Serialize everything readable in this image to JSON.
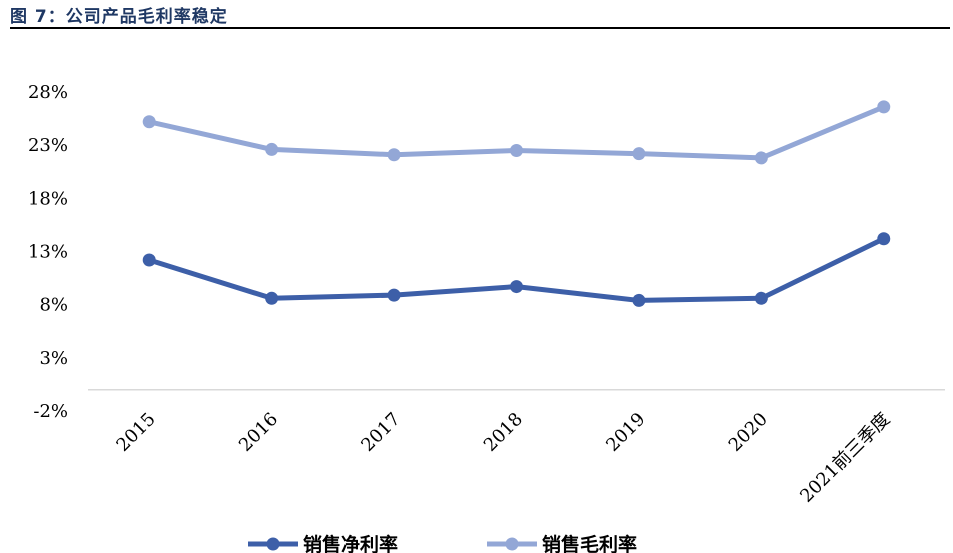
{
  "figure": {
    "title": "图 7：公司产品毛利率稳定"
  },
  "chart_data": {
    "type": "line",
    "title": "图 7：公司产品毛利率稳定",
    "xlabel": "",
    "ylabel": "",
    "categories": [
      "2015",
      "2016",
      "2017",
      "2018",
      "2019",
      "2020",
      "2021前三季度"
    ],
    "y_ticks": [
      "28%",
      "23%",
      "18%",
      "13%",
      "8%",
      "3%",
      "-2%"
    ],
    "y_tick_values": [
      28,
      23,
      18,
      13,
      8,
      3,
      -2
    ],
    "ylim": [
      -2,
      28
    ],
    "grid": false,
    "legend_position": "bottom",
    "series": [
      {
        "name": "销售净利率",
        "color": "#3d5fa8",
        "values": [
          12.2,
          8.6,
          8.9,
          9.7,
          8.4,
          8.6,
          14.2
        ]
      },
      {
        "name": "销售毛利率",
        "color": "#93a7d6",
        "values": [
          25.2,
          22.6,
          22.1,
          22.5,
          22.2,
          21.8,
          26.6
        ]
      }
    ]
  }
}
